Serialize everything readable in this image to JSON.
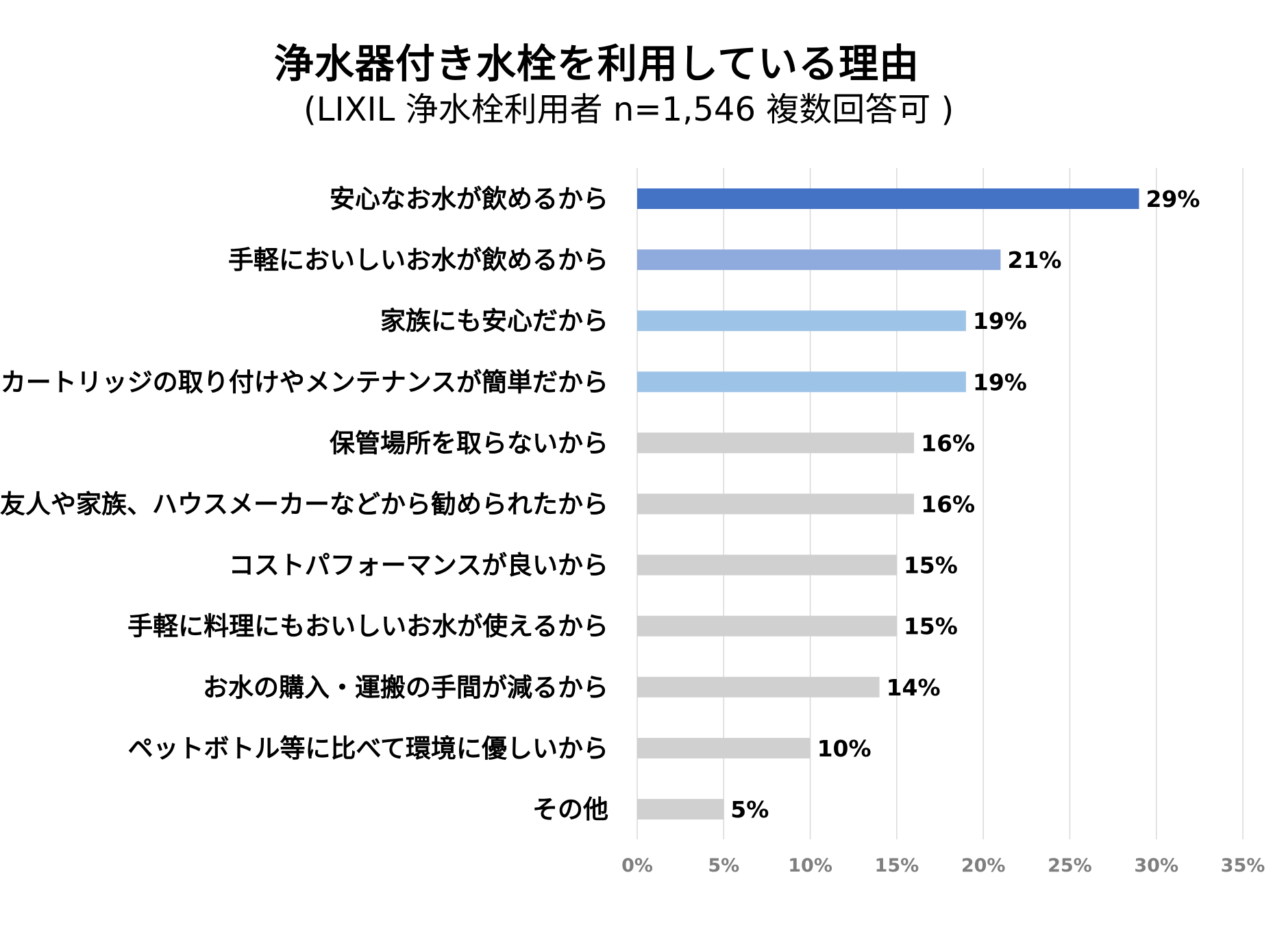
{
  "chart_data": {
    "type": "bar",
    "orientation": "horizontal",
    "title": "浄水器付き水栓を利用している理由",
    "subtitle": "(LIXIL 浄水栓利用者 n=1,546 複数回答可 )",
    "categories": [
      "安心なお水が飲めるから",
      "手軽においしいお水が飲めるから",
      "家族にも安心だから",
      "カートリッジの取り付けやメンテナンスが簡単だから",
      "保管場所を取らないから",
      "友人や家族、ハウスメーカーなどから勧められたから",
      "コストパフォーマンスが良いから",
      "手軽に料理にもおいしいお水が使えるから",
      "お水の購入・運搬の手間が減るから",
      "ペットボトル等に比べて環境に優しいから",
      "その他"
    ],
    "values": [
      29,
      21,
      19,
      19,
      16,
      16,
      15,
      15,
      14,
      10,
      5
    ],
    "value_labels": [
      "29%",
      "21%",
      "19%",
      "19%",
      "16%",
      "16%",
      "15%",
      "15%",
      "14%",
      "10%",
      "5%"
    ],
    "bar_colors": [
      "#4472c4",
      "#8faadc",
      "#9dc3e6",
      "#9dc3e6",
      "#d0d0d0",
      "#d0d0d0",
      "#d0d0d0",
      "#d0d0d0",
      "#d0d0d0",
      "#d0d0d0",
      "#d0d0d0"
    ],
    "xlim": [
      0,
      35
    ],
    "xticks": [
      0,
      5,
      10,
      15,
      20,
      25,
      30,
      35
    ],
    "xtick_labels": [
      "0%",
      "5%",
      "10%",
      "15%",
      "20%",
      "25%",
      "30%",
      "35%"
    ],
    "grid": true,
    "legend": "none"
  }
}
